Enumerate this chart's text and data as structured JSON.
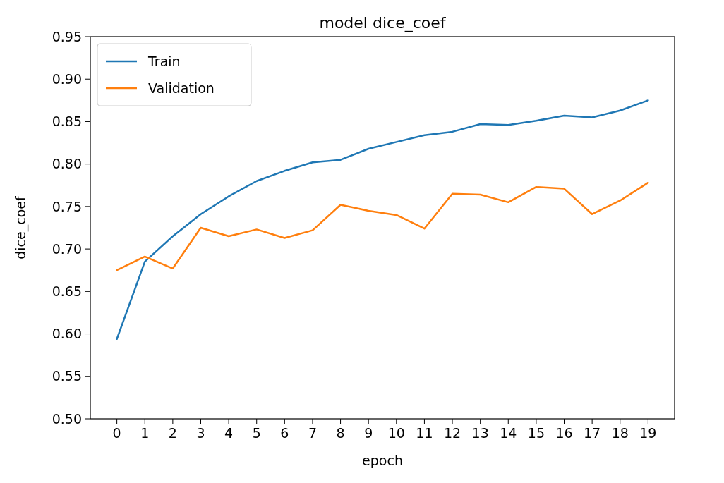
{
  "chart_data": {
    "type": "line",
    "title": "model dice_coef",
    "xlabel": "epoch",
    "ylabel": "dice_coef",
    "x": [
      0,
      1,
      2,
      3,
      4,
      5,
      6,
      7,
      8,
      9,
      10,
      11,
      12,
      13,
      14,
      15,
      16,
      17,
      18,
      19
    ],
    "xlim": [
      -0.95,
      19.95
    ],
    "xticks": [
      0,
      1,
      2,
      3,
      4,
      5,
      6,
      7,
      8,
      9,
      10,
      11,
      12,
      13,
      14,
      15,
      16,
      17,
      18,
      19
    ],
    "ylim": [
      0.5,
      0.95
    ],
    "yticks": [
      {
        "value": 0.5,
        "label": "0.50"
      },
      {
        "value": 0.55,
        "label": "0.55"
      },
      {
        "value": 0.6,
        "label": "0.60"
      },
      {
        "value": 0.65,
        "label": "0.65"
      },
      {
        "value": 0.7,
        "label": "0.70"
      },
      {
        "value": 0.75,
        "label": "0.75"
      },
      {
        "value": 0.8,
        "label": "0.80"
      },
      {
        "value": 0.85,
        "label": "0.85"
      },
      {
        "value": 0.9,
        "label": "0.90"
      },
      {
        "value": 0.95,
        "label": "0.95"
      }
    ],
    "legend": "top left",
    "grid": false,
    "series": [
      {
        "name": "Train",
        "color": "#1f77b4",
        "values": [
          0.594,
          0.685,
          0.715,
          0.741,
          0.762,
          0.78,
          0.792,
          0.802,
          0.805,
          0.818,
          0.826,
          0.834,
          0.838,
          0.847,
          0.846,
          0.851,
          0.857,
          0.855,
          0.863,
          0.875
        ]
      },
      {
        "name": "Validation",
        "color": "#ff7f0e",
        "values": [
          0.675,
          0.691,
          0.677,
          0.725,
          0.715,
          0.723,
          0.713,
          0.722,
          0.752,
          0.745,
          0.74,
          0.724,
          0.765,
          0.764,
          0.755,
          0.773,
          0.771,
          0.741,
          0.757,
          0.778
        ]
      }
    ]
  }
}
